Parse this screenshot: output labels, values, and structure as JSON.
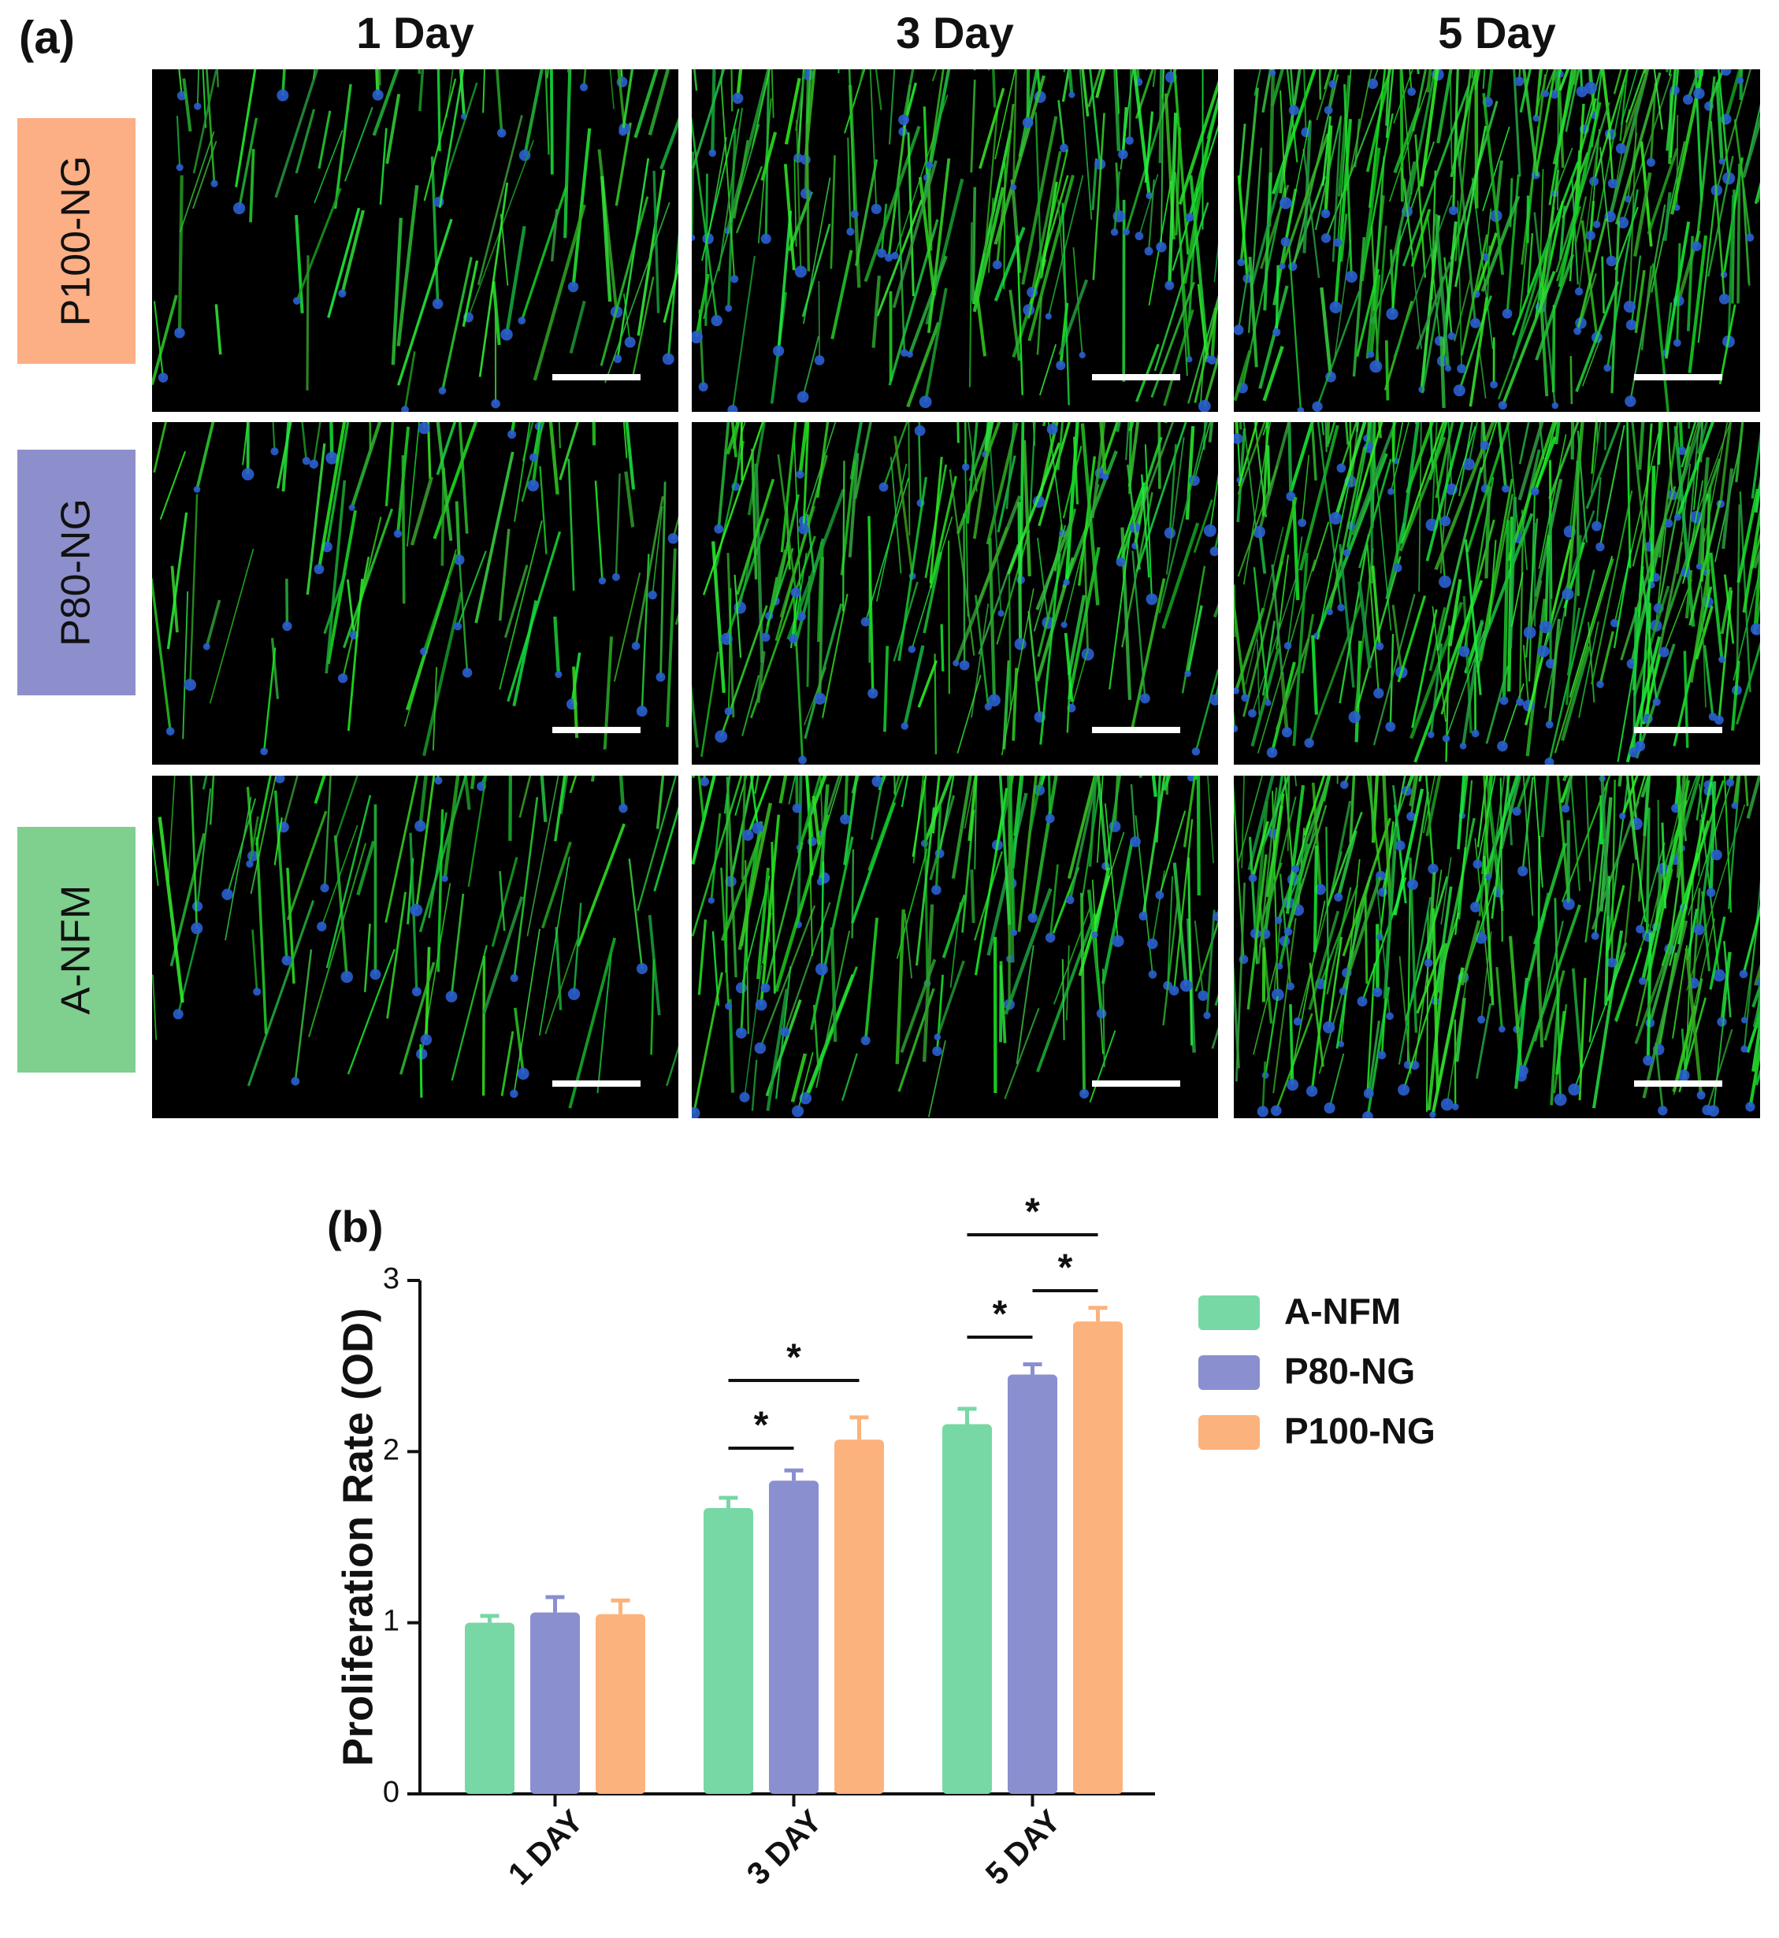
{
  "panel_a": {
    "label": "(a)",
    "columns": [
      "1 Day",
      "3 Day",
      "5 Day"
    ],
    "rows": [
      {
        "label": "P100-NG",
        "color": "#fcae84"
      },
      {
        "label": "P80-NG",
        "color": "#8d8fcc"
      },
      {
        "label": "A-NFM",
        "color": "#7fcf8f"
      }
    ]
  },
  "chart_data": {
    "type": "bar",
    "panel_label": "(b)",
    "y_label": "Proliferation Rate (OD)",
    "categories": [
      "1 DAY",
      "3 DAY",
      "5 DAY"
    ],
    "series": [
      {
        "name": "A-NFM",
        "color": "#77d8a5",
        "values": [
          1.0,
          1.67,
          2.16
        ],
        "errors": [
          0.04,
          0.06,
          0.09
        ]
      },
      {
        "name": "P80-NG",
        "color": "#8a8fcf",
        "values": [
          1.06,
          1.83,
          2.45
        ],
        "errors": [
          0.09,
          0.06,
          0.06
        ]
      },
      {
        "name": "P100-NG",
        "color": "#fcb27c",
        "values": [
          1.05,
          2.07,
          2.76
        ],
        "errors": [
          0.08,
          0.13,
          0.08
        ]
      }
    ],
    "ylim": [
      0,
      3
    ],
    "yticks": [
      0,
      1,
      2,
      3
    ],
    "annotations": [
      "*",
      "*",
      "*",
      "*",
      "*"
    ]
  }
}
